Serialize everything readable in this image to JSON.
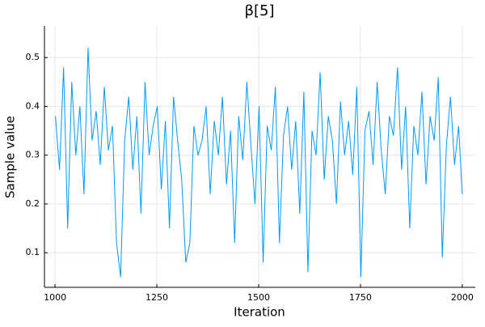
{
  "chart_data": {
    "type": "line",
    "title": "β[5]",
    "xlabel": "Iteration",
    "ylabel": "Sample value",
    "x": [
      1001,
      1011,
      1021,
      1031,
      1041,
      1051,
      1061,
      1071,
      1081,
      1091,
      1101,
      1111,
      1121,
      1131,
      1141,
      1151,
      1161,
      1171,
      1181,
      1191,
      1201,
      1211,
      1221,
      1231,
      1241,
      1251,
      1261,
      1271,
      1281,
      1291,
      1301,
      1311,
      1321,
      1331,
      1341,
      1351,
      1361,
      1371,
      1381,
      1391,
      1401,
      1411,
      1421,
      1431,
      1441,
      1451,
      1461,
      1471,
      1481,
      1491,
      1501,
      1511,
      1521,
      1531,
      1541,
      1551,
      1561,
      1571,
      1581,
      1591,
      1601,
      1611,
      1621,
      1631,
      1641,
      1651,
      1661,
      1671,
      1681,
      1691,
      1701,
      1711,
      1721,
      1731,
      1741,
      1751,
      1761,
      1771,
      1781,
      1791,
      1801,
      1811,
      1821,
      1831,
      1841,
      1851,
      1861,
      1871,
      1881,
      1891,
      1901,
      1911,
      1921,
      1931,
      1941,
      1951,
      1961,
      1971,
      1981,
      1991,
      2000
    ],
    "series": [
      {
        "color": "#009af9",
        "values": [
          0.38,
          0.27,
          0.48,
          0.15,
          0.45,
          0.3,
          0.4,
          0.22,
          0.52,
          0.33,
          0.39,
          0.28,
          0.44,
          0.31,
          0.36,
          0.12,
          0.05,
          0.33,
          0.42,
          0.27,
          0.38,
          0.18,
          0.45,
          0.3,
          0.36,
          0.4,
          0.23,
          0.37,
          0.15,
          0.42,
          0.33,
          0.25,
          0.08,
          0.12,
          0.36,
          0.3,
          0.33,
          0.4,
          0.22,
          0.37,
          0.3,
          0.42,
          0.24,
          0.35,
          0.12,
          0.38,
          0.29,
          0.45,
          0.32,
          0.2,
          0.4,
          0.08,
          0.36,
          0.31,
          0.44,
          0.12,
          0.34,
          0.4,
          0.27,
          0.37,
          0.18,
          0.43,
          0.06,
          0.35,
          0.3,
          0.47,
          0.25,
          0.38,
          0.33,
          0.2,
          0.41,
          0.3,
          0.37,
          0.26,
          0.44,
          0.05,
          0.35,
          0.39,
          0.28,
          0.45,
          0.31,
          0.22,
          0.38,
          0.34,
          0.48,
          0.27,
          0.4,
          0.15,
          0.36,
          0.3,
          0.43,
          0.24,
          0.38,
          0.33,
          0.46,
          0.09,
          0.32,
          0.42,
          0.28,
          0.36,
          0.22
        ]
      }
    ],
    "xlim": [
      974,
      2032
    ],
    "ylim": [
      0.029,
      0.565
    ],
    "xticks": [
      1000,
      1250,
      1500,
      1750,
      2000
    ],
    "yticks": [
      0.1,
      0.2,
      0.3,
      0.4,
      0.5
    ],
    "grid": true
  }
}
